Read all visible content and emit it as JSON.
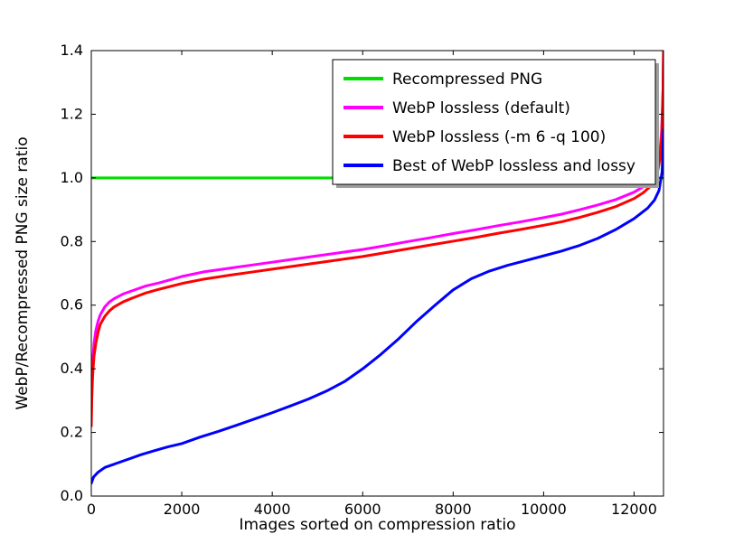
{
  "chart_data": {
    "type": "line",
    "title": "",
    "xlabel": "Images sorted on compression ratio",
    "ylabel": "WebP/Recompressed PNG size ratio",
    "xlim": [
      0,
      12650
    ],
    "ylim": [
      0.0,
      1.4
    ],
    "xticks": [
      0,
      2000,
      4000,
      6000,
      8000,
      10000,
      12000
    ],
    "xtick_labels": [
      "0",
      "2000",
      "4000",
      "6000",
      "8000",
      "10000",
      "12000"
    ],
    "yticks": [
      0.0,
      0.2,
      0.4,
      0.6,
      0.8,
      1.0,
      1.2,
      1.4
    ],
    "ytick_labels": [
      "0.0",
      "0.2",
      "0.4",
      "0.6",
      "0.8",
      "1.0",
      "1.2",
      "1.4"
    ],
    "grid": false,
    "legend_position": "upper center-right",
    "background_color": "#ffffff",
    "axis_color": "#000000",
    "series": [
      {
        "name": "Recompressed PNG",
        "color": "#00dd00",
        "x": [
          0,
          12650
        ],
        "y": [
          1.0,
          1.0
        ]
      },
      {
        "name": "WebP lossless (default)",
        "color": "#ff00ff",
        "x": [
          0,
          10,
          30,
          60,
          100,
          150,
          200,
          300,
          400,
          500,
          700,
          900,
          1200,
          1500,
          2000,
          2500,
          3000,
          3500,
          4000,
          4500,
          5000,
          5500,
          6000,
          6500,
          7000,
          7500,
          8000,
          8500,
          9000,
          9500,
          10000,
          10400,
          10800,
          11200,
          11600,
          12000,
          12200,
          12350,
          12450,
          12520,
          12570,
          12610,
          12640,
          12650
        ],
        "y": [
          0.26,
          0.34,
          0.42,
          0.48,
          0.52,
          0.55,
          0.57,
          0.595,
          0.61,
          0.62,
          0.635,
          0.645,
          0.66,
          0.67,
          0.69,
          0.705,
          0.715,
          0.725,
          0.735,
          0.745,
          0.755,
          0.765,
          0.775,
          0.787,
          0.8,
          0.812,
          0.825,
          0.837,
          0.85,
          0.862,
          0.875,
          0.886,
          0.9,
          0.915,
          0.932,
          0.955,
          0.972,
          0.99,
          1.01,
          1.04,
          1.08,
          1.15,
          1.28,
          1.4
        ]
      },
      {
        "name": "WebP lossless (-m 6 -q 100)",
        "color": "#ff0000",
        "x": [
          0,
          10,
          30,
          60,
          100,
          150,
          200,
          300,
          400,
          500,
          700,
          900,
          1200,
          1500,
          2000,
          2500,
          3000,
          3500,
          4000,
          4500,
          5000,
          5500,
          6000,
          6500,
          7000,
          7500,
          8000,
          8500,
          9000,
          9500,
          10000,
          10400,
          10800,
          11200,
          11600,
          12000,
          12200,
          12350,
          12450,
          12520,
          12570,
          12610,
          12640,
          12650
        ],
        "y": [
          0.22,
          0.3,
          0.38,
          0.44,
          0.48,
          0.515,
          0.54,
          0.565,
          0.582,
          0.594,
          0.61,
          0.622,
          0.638,
          0.65,
          0.668,
          0.682,
          0.693,
          0.703,
          0.713,
          0.723,
          0.733,
          0.743,
          0.753,
          0.765,
          0.777,
          0.789,
          0.801,
          0.813,
          0.826,
          0.838,
          0.851,
          0.862,
          0.876,
          0.892,
          0.91,
          0.935,
          0.953,
          0.972,
          0.992,
          1.02,
          1.06,
          1.13,
          1.27,
          1.4
        ]
      },
      {
        "name": "Best of WebP lossless and lossy",
        "color": "#0000ff",
        "x": [
          0,
          50,
          150,
          300,
          500,
          800,
          1100,
          1400,
          1700,
          2000,
          2400,
          2800,
          3200,
          3600,
          4000,
          4400,
          4800,
          5200,
          5600,
          6000,
          6400,
          6800,
          7200,
          7600,
          8000,
          8400,
          8800,
          9200,
          9600,
          10000,
          10400,
          10800,
          11200,
          11600,
          12000,
          12300,
          12450,
          12550,
          12620,
          12650
        ],
        "y": [
          0.04,
          0.06,
          0.075,
          0.09,
          0.1,
          0.115,
          0.13,
          0.143,
          0.155,
          0.165,
          0.185,
          0.203,
          0.222,
          0.242,
          0.262,
          0.283,
          0.305,
          0.33,
          0.36,
          0.4,
          0.445,
          0.495,
          0.55,
          0.6,
          0.648,
          0.683,
          0.707,
          0.725,
          0.74,
          0.755,
          0.77,
          0.788,
          0.81,
          0.838,
          0.872,
          0.905,
          0.93,
          0.96,
          1.02,
          1.15
        ]
      }
    ]
  }
}
